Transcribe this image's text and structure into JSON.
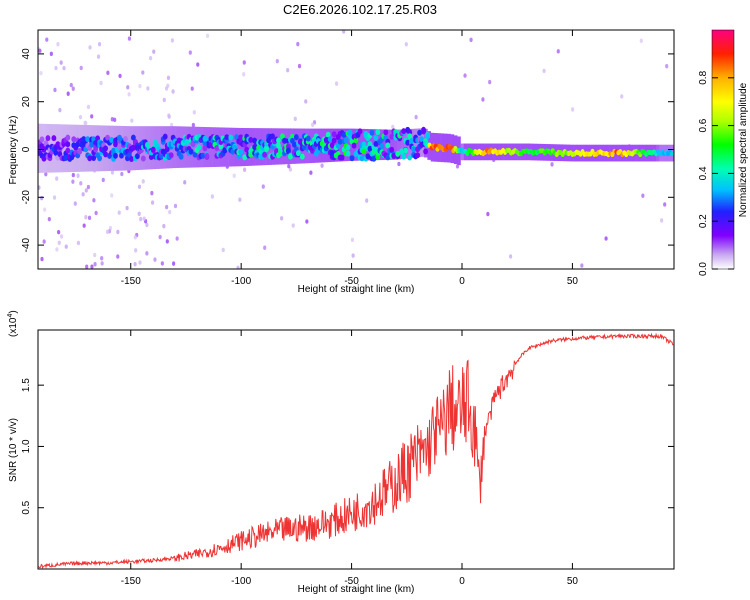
{
  "title": "C2E6.2026.102.17.25.R03",
  "colorbar": {
    "label": "Normalized spectral amplitude",
    "ticks": [
      "0.0",
      "0.2",
      "0.4",
      "0.6",
      "0.8"
    ],
    "tick_values": [
      0.0,
      0.2,
      0.4,
      0.6,
      0.8
    ],
    "range": [
      0,
      1
    ],
    "colormap": [
      "#ffffff",
      "#c8a8f0",
      "#8000ff",
      "#2020ff",
      "#00c0ff",
      "#00ffb0",
      "#00ff00",
      "#b0ff00",
      "#ffff00",
      "#ffb000",
      "#ff2000",
      "#ff0080"
    ]
  },
  "chart_data": [
    {
      "type": "heatmap",
      "xlabel": "Height of straight line (km)",
      "ylabel": "Frequency (Hz)",
      "xlim": [
        -192,
        96
      ],
      "ylim": [
        -50,
        50
      ],
      "xticks": [
        -150,
        -100,
        -50,
        0,
        50
      ],
      "xtick_labels": [
        "-150",
        "-100",
        "-50",
        "0",
        "50"
      ],
      "yticks": [
        -40,
        -20,
        0,
        20,
        40
      ],
      "ytick_labels": [
        "-40",
        "-20",
        "0",
        "20",
        "40"
      ],
      "ridge": [
        {
          "x": -190,
          "f": 0.5,
          "amp": 0.25
        },
        {
          "x": -170,
          "f": 0.5,
          "amp": 0.3
        },
        {
          "x": -150,
          "f": 0.5,
          "amp": 0.35
        },
        {
          "x": -130,
          "f": 1.0,
          "amp": 0.4
        },
        {
          "x": -100,
          "f": 1.0,
          "amp": 0.45
        },
        {
          "x": -70,
          "f": 1.5,
          "amp": 0.45
        },
        {
          "x": -50,
          "f": 2.0,
          "amp": 0.5
        },
        {
          "x": -30,
          "f": 2.0,
          "amp": 0.45
        },
        {
          "x": -17,
          "f": 3.0,
          "amp": 0.35
        },
        {
          "x": -14,
          "f": 1.0,
          "amp": 0.9
        },
        {
          "x": -5,
          "f": 0.5,
          "amp": 0.95
        },
        {
          "x": 0,
          "f": -1.0,
          "amp": 0.4
        },
        {
          "x": 10,
          "f": -1.0,
          "amp": 0.9
        },
        {
          "x": 30,
          "f": -1.0,
          "amp": 0.55
        },
        {
          "x": 50,
          "f": -1.5,
          "amp": 0.7
        },
        {
          "x": 70,
          "f": -1.5,
          "amp": 0.9
        },
        {
          "x": 90,
          "f": -1.5,
          "amp": 0.4
        }
      ]
    },
    {
      "type": "line",
      "xlabel": "Height of straight line (km)",
      "ylabel": "SNR (10 * v/v)",
      "multiplier": "(x10",
      "multiplier_exp": "4",
      "multiplier_tail": ")",
      "xlim": [
        -192,
        96
      ],
      "ylim": [
        0,
        1.95
      ],
      "xticks": [
        -150,
        -100,
        -50,
        0,
        50
      ],
      "xtick_labels": [
        "-150",
        "-100",
        "-50",
        "0",
        "50"
      ],
      "yticks": [
        0.5,
        1.0,
        1.5
      ],
      "ytick_labels": [
        "0.5",
        "1.0",
        "1.5"
      ],
      "color": "#ee3333",
      "series": [
        {
          "x": [
            -192,
            -180,
            -170,
            -160,
            -150,
            -140,
            -130,
            -120,
            -110,
            -100,
            -90,
            -80,
            -70,
            -60,
            -50,
            -40,
            -30,
            -25,
            -20,
            -15,
            -12,
            -10,
            -8,
            -5,
            -3,
            0,
            3,
            6,
            8,
            10,
            15,
            20,
            25,
            30,
            40,
            50,
            60,
            70,
            80,
            90,
            96
          ],
          "values": [
            0.02,
            0.04,
            0.05,
            0.05,
            0.06,
            0.07,
            0.09,
            0.12,
            0.17,
            0.23,
            0.28,
            0.32,
            0.34,
            0.38,
            0.45,
            0.55,
            0.7,
            0.82,
            0.9,
            1.0,
            1.15,
            1.1,
            1.2,
            1.35,
            1.25,
            1.3,
            1.35,
            1.1,
            0.65,
            1.1,
            1.4,
            1.55,
            1.7,
            1.8,
            1.86,
            1.88,
            1.89,
            1.9,
            1.9,
            1.9,
            1.83
          ]
        }
      ]
    }
  ]
}
